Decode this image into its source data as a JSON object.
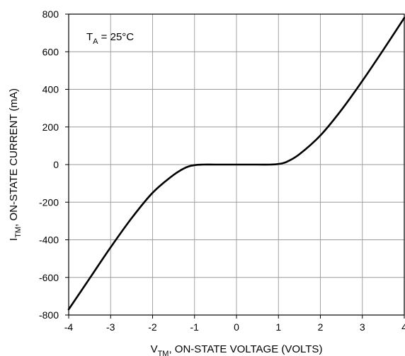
{
  "chart_data": {
    "type": "line",
    "xlabel": {
      "main": "V",
      "sub": "TM",
      "rest": ", ON-STATE VOLTAGE (VOLTS)"
    },
    "ylabel": {
      "main": "I",
      "sub": "TM",
      "rest": ", ON-STATE CURRENT (mA)"
    },
    "annotation": {
      "main": "T",
      "sub": "A",
      "rest": " = 25°C"
    },
    "xlim": [
      -4,
      4
    ],
    "ylim": [
      -800,
      800
    ],
    "x_ticks": [
      -4,
      -3,
      -2,
      -1,
      0,
      1,
      2,
      3,
      4
    ],
    "y_ticks": [
      -800,
      -600,
      -400,
      -200,
      0,
      200,
      400,
      600,
      800
    ],
    "x_tick_labels": [
      "-4",
      "-3",
      "-2",
      "-1",
      "0",
      "1",
      "2",
      "3",
      "4"
    ],
    "y_tick_labels": [
      "-800",
      "-600",
      "-400",
      "-200",
      "0",
      "200",
      "400",
      "600",
      "800"
    ],
    "grid": true,
    "series": [
      {
        "color": "#000000",
        "x": [
          -4.0,
          -3.5,
          -3.0,
          -2.5,
          -2.0,
          -1.5,
          -1.2,
          -1.0,
          -0.8,
          -0.5,
          0.0,
          0.5,
          0.8,
          1.0,
          1.2,
          1.5,
          2.0,
          2.5,
          3.0,
          3.5,
          4.0
        ],
        "y": [
          -770,
          -605,
          -440,
          -285,
          -150,
          -55,
          -15,
          -3,
          0,
          0,
          0,
          0,
          0,
          3,
          15,
          55,
          155,
          290,
          445,
          610,
          780
        ]
      }
    ]
  }
}
